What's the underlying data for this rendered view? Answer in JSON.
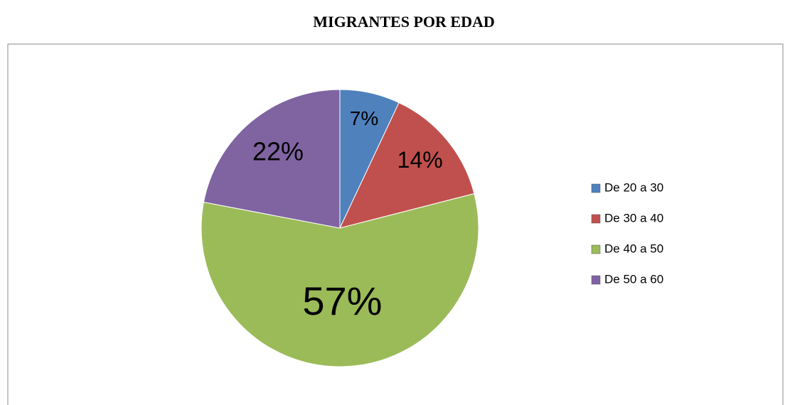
{
  "chart_data": {
    "type": "pie",
    "title": "MIGRANTES POR EDAD",
    "categories": [
      "De 20 a 30",
      "De 30 a 40",
      "De 40 a 50",
      "De 50 a 60"
    ],
    "values": [
      7,
      14,
      57,
      22
    ],
    "value_labels": [
      "7%",
      "14%",
      "57%",
      "22%"
    ],
    "colors": [
      "#4f81bd",
      "#c0504d",
      "#9bbb59",
      "#8064a2"
    ],
    "legend": "right"
  }
}
